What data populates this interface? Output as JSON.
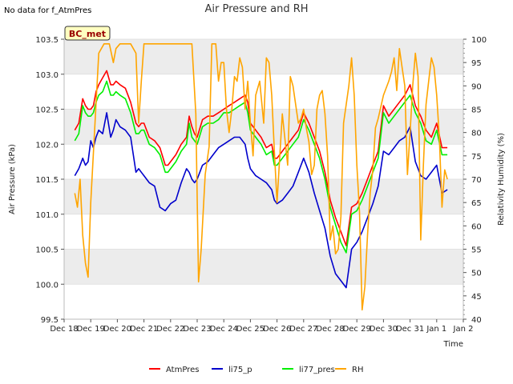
{
  "header": {
    "note": "No data for f_AtmPres",
    "title": "Air Pressure and RH"
  },
  "chart_data": {
    "type": "line",
    "title": "Air Pressure and RH",
    "xlabel": "Time",
    "ylabel": "Air Pressure (kPa)",
    "y2label": "Relativity Humidity (%)",
    "station_badge": "BC_met",
    "xlim": [
      0,
      15
    ],
    "ylim": [
      99.5,
      103.5
    ],
    "y2lim": [
      40,
      100
    ],
    "x_ticks": [
      {
        "x": 0,
        "label": "Dec 18"
      },
      {
        "x": 1,
        "label": "Dec 19"
      },
      {
        "x": 2,
        "label": "Dec 20"
      },
      {
        "x": 3,
        "label": "Dec 21"
      },
      {
        "x": 4,
        "label": "Dec 22"
      },
      {
        "x": 5,
        "label": "Dec 23"
      },
      {
        "x": 6,
        "label": "Dec 24"
      },
      {
        "x": 7,
        "label": "Dec 25"
      },
      {
        "x": 8,
        "label": "Dec 26"
      },
      {
        "x": 9,
        "label": "Dec 27"
      },
      {
        "x": 10,
        "label": "Dec 28"
      },
      {
        "x": 11,
        "label": "Dec 29"
      },
      {
        "x": 12,
        "label": "Dec 30"
      },
      {
        "x": 13,
        "label": "Dec 31"
      },
      {
        "x": 14,
        "label": "Jan 1"
      },
      {
        "x": 15,
        "label": "Jan 2"
      }
    ],
    "y_ticks": [
      "99.5",
      "100.0",
      "100.5",
      "101.0",
      "101.5",
      "102.0",
      "102.5",
      "103.0",
      "103.5"
    ],
    "y2_ticks": [
      "40",
      "45",
      "50",
      "55",
      "60",
      "65",
      "70",
      "75",
      "80",
      "85",
      "90",
      "95",
      "100"
    ],
    "grid": "horizontal bands",
    "legend_position": "bottom",
    "series": [
      {
        "name": "AtmPres",
        "color": "#ff0000",
        "axis": "left",
        "x": [
          0.4,
          0.55,
          0.7,
          0.8,
          0.9,
          1.0,
          1.1,
          1.2,
          1.3,
          1.45,
          1.6,
          1.75,
          1.85,
          1.95,
          2.1,
          2.3,
          2.5,
          2.7,
          2.8,
          2.9,
          3.0,
          3.2,
          3.4,
          3.6,
          3.8,
          3.9,
          4.0,
          4.2,
          4.4,
          4.6,
          4.7,
          4.8,
          4.9,
          5.0,
          5.2,
          5.4,
          5.6,
          5.8,
          6.0,
          6.2,
          6.4,
          6.6,
          6.8,
          6.9,
          7.0,
          7.2,
          7.4,
          7.6,
          7.8,
          7.9,
          8.0,
          8.2,
          8.4,
          8.6,
          8.8,
          9.0,
          9.2,
          9.4,
          9.6,
          9.8,
          10.0,
          10.2,
          10.4,
          10.6,
          10.8,
          11.0,
          11.2,
          11.4,
          11.6,
          11.8,
          12.0,
          12.2,
          12.4,
          12.6,
          12.8,
          13.0,
          13.2,
          13.4,
          13.6,
          13.8,
          14.0,
          14.2,
          14.4
        ],
        "y": [
          102.2,
          102.3,
          102.65,
          102.55,
          102.5,
          102.5,
          102.55,
          102.75,
          102.85,
          102.95,
          103.05,
          102.85,
          102.85,
          102.9,
          102.85,
          102.8,
          102.6,
          102.3,
          102.25,
          102.3,
          102.3,
          102.1,
          102.05,
          101.95,
          101.7,
          101.7,
          101.75,
          101.85,
          102.0,
          102.1,
          102.4,
          102.25,
          102.15,
          102.1,
          102.35,
          102.4,
          102.4,
          102.45,
          102.5,
          102.55,
          102.6,
          102.65,
          102.7,
          102.6,
          102.3,
          102.2,
          102.1,
          101.95,
          102.0,
          101.8,
          101.8,
          101.9,
          102.0,
          102.1,
          102.2,
          102.45,
          102.3,
          102.1,
          101.9,
          101.6,
          101.2,
          100.95,
          100.75,
          100.55,
          101.1,
          101.15,
          101.3,
          101.5,
          101.7,
          101.9,
          102.55,
          102.4,
          102.5,
          102.6,
          102.7,
          102.85,
          102.55,
          102.4,
          102.2,
          102.1,
          102.3,
          101.95,
          101.95
        ]
      },
      {
        "name": "li75_p",
        "color": "#0000cc",
        "axis": "left",
        "x": [
          0.4,
          0.55,
          0.7,
          0.8,
          0.9,
          1.0,
          1.1,
          1.2,
          1.3,
          1.45,
          1.6,
          1.75,
          1.85,
          1.95,
          2.1,
          2.3,
          2.5,
          2.7,
          2.8,
          2.9,
          3.0,
          3.2,
          3.4,
          3.6,
          3.8,
          3.9,
          4.0,
          4.2,
          4.4,
          4.6,
          4.7,
          4.8,
          4.9,
          5.0,
          5.2,
          5.4,
          5.6,
          5.8,
          6.0,
          6.2,
          6.4,
          6.6,
          6.8,
          6.9,
          7.0,
          7.2,
          7.4,
          7.6,
          7.8,
          7.9,
          8.0,
          8.2,
          8.4,
          8.6,
          8.8,
          9.0,
          9.2,
          9.4,
          9.6,
          9.8,
          10.0,
          10.2,
          10.4,
          10.6,
          10.8,
          11.0,
          11.2,
          11.4,
          11.6,
          11.8,
          12.0,
          12.2,
          12.4,
          12.6,
          12.8,
          13.0,
          13.2,
          13.4,
          13.6,
          13.8,
          14.0,
          14.2,
          14.4
        ],
        "y": [
          101.55,
          101.65,
          101.8,
          101.7,
          101.75,
          102.05,
          101.95,
          102.1,
          102.2,
          102.15,
          102.45,
          102.1,
          102.2,
          102.35,
          102.25,
          102.2,
          102.1,
          101.6,
          101.65,
          101.6,
          101.55,
          101.45,
          101.4,
          101.1,
          101.05,
          101.1,
          101.15,
          101.2,
          101.45,
          101.65,
          101.6,
          101.5,
          101.45,
          101.5,
          101.7,
          101.75,
          101.85,
          101.95,
          102.0,
          102.05,
          102.1,
          102.1,
          102.0,
          101.8,
          101.65,
          101.55,
          101.5,
          101.45,
          101.35,
          101.2,
          101.15,
          101.2,
          101.3,
          101.4,
          101.6,
          101.8,
          101.6,
          101.3,
          101.05,
          100.8,
          100.4,
          100.15,
          100.05,
          99.95,
          100.5,
          100.6,
          100.75,
          100.95,
          101.15,
          101.4,
          101.9,
          101.85,
          101.95,
          102.05,
          102.1,
          102.25,
          101.75,
          101.55,
          101.5,
          101.6,
          101.7,
          101.3,
          101.35
        ]
      },
      {
        "name": "li77_pres",
        "color": "#00ee00",
        "axis": "left",
        "x": [
          0.4,
          0.55,
          0.7,
          0.8,
          0.9,
          1.0,
          1.1,
          1.2,
          1.3,
          1.45,
          1.6,
          1.75,
          1.85,
          1.95,
          2.1,
          2.3,
          2.5,
          2.7,
          2.8,
          2.9,
          3.0,
          3.2,
          3.4,
          3.6,
          3.8,
          3.9,
          4.0,
          4.2,
          4.4,
          4.6,
          4.7,
          4.8,
          4.9,
          5.0,
          5.2,
          5.4,
          5.6,
          5.8,
          6.0,
          6.2,
          6.4,
          6.6,
          6.8,
          6.9,
          7.0,
          7.2,
          7.4,
          7.6,
          7.8,
          7.9,
          8.0,
          8.2,
          8.4,
          8.6,
          8.8,
          9.0,
          9.2,
          9.4,
          9.6,
          9.8,
          10.0,
          10.2,
          10.4,
          10.6,
          10.8,
          11.0,
          11.2,
          11.4,
          11.6,
          11.8,
          12.0,
          12.2,
          12.4,
          12.6,
          12.8,
          13.0,
          13.2,
          13.4,
          13.6,
          13.8,
          14.0,
          14.2,
          14.4
        ],
        "y": [
          102.05,
          102.15,
          102.55,
          102.45,
          102.4,
          102.4,
          102.45,
          102.6,
          102.7,
          102.75,
          102.9,
          102.7,
          102.7,
          102.75,
          102.7,
          102.65,
          102.45,
          102.15,
          102.15,
          102.2,
          102.2,
          102.0,
          101.95,
          101.85,
          101.6,
          101.6,
          101.65,
          101.75,
          101.9,
          102.0,
          102.3,
          102.1,
          102.05,
          102.0,
          102.25,
          102.3,
          102.3,
          102.35,
          102.45,
          102.45,
          102.5,
          102.55,
          102.6,
          102.45,
          102.2,
          102.1,
          102.0,
          101.85,
          101.9,
          101.7,
          101.7,
          101.8,
          101.9,
          102.0,
          102.1,
          102.35,
          102.2,
          102.0,
          101.8,
          101.5,
          101.1,
          100.85,
          100.6,
          100.45,
          101.0,
          101.05,
          101.2,
          101.4,
          101.6,
          101.8,
          102.45,
          102.3,
          102.4,
          102.5,
          102.6,
          102.7,
          102.45,
          102.3,
          102.05,
          102.0,
          102.2,
          101.85,
          101.85
        ]
      },
      {
        "name": "RH",
        "color": "#ffa500",
        "axis": "right",
        "x": [
          0.4,
          0.5,
          0.6,
          0.7,
          0.8,
          0.9,
          1.0,
          1.15,
          1.3,
          1.5,
          1.7,
          1.85,
          1.95,
          2.1,
          2.3,
          2.5,
          2.7,
          2.8,
          2.9,
          3.0,
          3.1,
          3.2,
          3.4,
          3.6,
          3.8,
          4.0,
          4.2,
          4.4,
          4.6,
          4.7,
          4.8,
          4.95,
          5.05,
          5.15,
          5.3,
          5.45,
          5.55,
          5.7,
          5.8,
          5.9,
          6.0,
          6.1,
          6.2,
          6.3,
          6.4,
          6.5,
          6.6,
          6.7,
          6.8,
          6.9,
          7.0,
          7.1,
          7.2,
          7.35,
          7.5,
          7.6,
          7.7,
          7.8,
          7.9,
          8.0,
          8.2,
          8.4,
          8.5,
          8.6,
          8.8,
          8.9,
          9.0,
          9.1,
          9.2,
          9.3,
          9.4,
          9.5,
          9.6,
          9.7,
          9.8,
          9.9,
          10.0,
          10.1,
          10.2,
          10.3,
          10.4,
          10.5,
          10.6,
          10.7,
          10.8,
          10.9,
          11.0,
          11.1,
          11.2,
          11.3,
          11.4,
          11.5,
          11.6,
          11.7,
          11.8,
          12.0,
          12.2,
          12.3,
          12.4,
          12.5,
          12.6,
          12.7,
          12.8,
          12.9,
          13.0,
          13.1,
          13.2,
          13.3,
          13.4,
          13.5,
          13.6,
          13.7,
          13.8,
          13.9,
          14.0,
          14.1,
          14.2,
          14.3,
          14.4
        ],
        "y": [
          67,
          64,
          70,
          58,
          52,
          49,
          65,
          81,
          97,
          99,
          99,
          95,
          98,
          99,
          99,
          99,
          97,
          82,
          91,
          99,
          99,
          99,
          99,
          99,
          99,
          99,
          99,
          99,
          99,
          99,
          99,
          84,
          48,
          55,
          71,
          77,
          99,
          99,
          91,
          95,
          95,
          85,
          80,
          85,
          92,
          91,
          96,
          94,
          85,
          91,
          82,
          75,
          88,
          91,
          82,
          96,
          95,
          88,
          76,
          65,
          84,
          73,
          92,
          90,
          82,
          83,
          85,
          81,
          78,
          71,
          73,
          85,
          88,
          89,
          84,
          75,
          57,
          60,
          54,
          55,
          62,
          82,
          86,
          90,
          96,
          88,
          73,
          63,
          42,
          47,
          58,
          67,
          72,
          81,
          83,
          88,
          91,
          93,
          96,
          89,
          98,
          94,
          90,
          71,
          80,
          90,
          97,
          92,
          57,
          73,
          86,
          91,
          96,
          94,
          88,
          79,
          64,
          72,
          70
        ]
      }
    ]
  }
}
